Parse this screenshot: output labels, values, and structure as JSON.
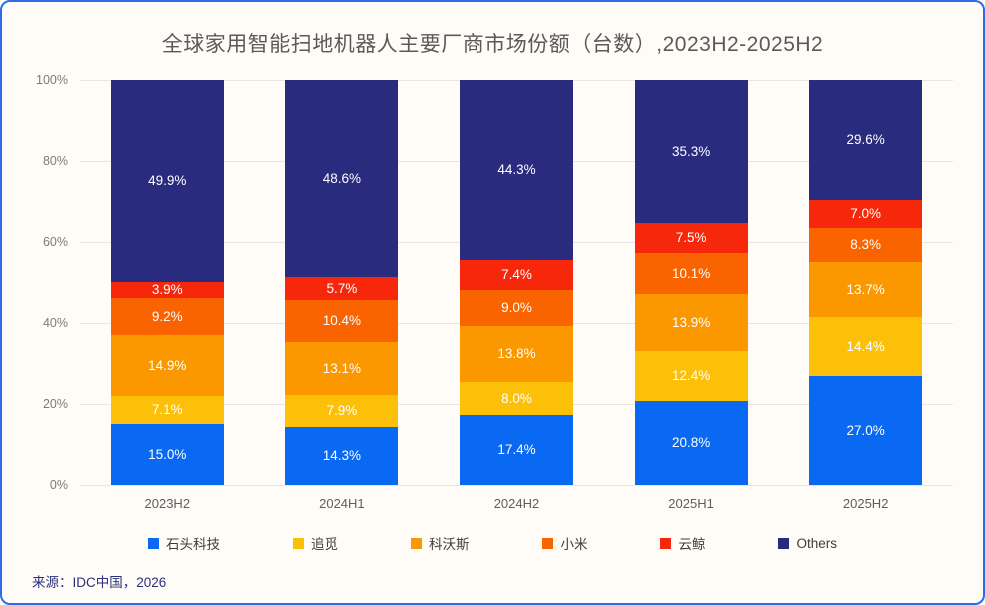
{
  "frame": {
    "border_color": "#2a6cea",
    "background": "#fffcf8"
  },
  "chart_data": {
    "type": "bar",
    "stacked": true,
    "title": "全球家用智能扫地机器人主要厂商市场份额（台数）,2023H2-2025H2",
    "categories": [
      "2023H2",
      "2024H1",
      "2024H2",
      "2025H1",
      "2025H2"
    ],
    "series": [
      {
        "name": "石头科技",
        "color": "#0969f2",
        "values": [
          15.0,
          14.3,
          17.4,
          20.8,
          27.0
        ]
      },
      {
        "name": "追觅",
        "color": "#fdc008",
        "values": [
          7.1,
          7.9,
          8.0,
          12.4,
          14.4
        ]
      },
      {
        "name": "科沃斯",
        "color": "#fb9800",
        "values": [
          14.9,
          13.1,
          13.8,
          13.9,
          13.7
        ]
      },
      {
        "name": "小米",
        "color": "#fa6400",
        "values": [
          9.2,
          10.4,
          9.0,
          10.1,
          8.3
        ]
      },
      {
        "name": "云鲸",
        "color": "#f7270b",
        "values": [
          3.9,
          5.7,
          7.4,
          7.5,
          7.0
        ]
      },
      {
        "name": "Others",
        "color": "#282b7e",
        "values": [
          49.9,
          48.6,
          44.3,
          35.3,
          29.6
        ]
      }
    ],
    "y_ticks": [
      0,
      20,
      40,
      60,
      80,
      100
    ],
    "ylim": [
      0,
      100
    ],
    "grid": true,
    "legend_position": "bottom",
    "value_suffix": "%",
    "label_color": "#ffffff"
  },
  "source": "来源：IDC中国，2026"
}
